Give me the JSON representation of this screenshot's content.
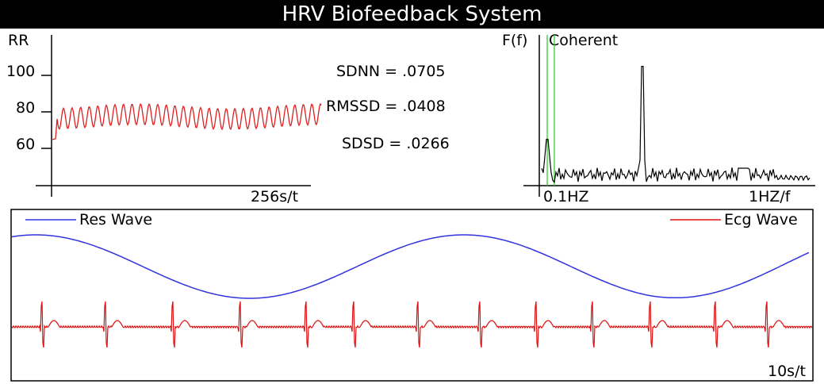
{
  "title": "HRV Biofeedback System",
  "rr_panel": {
    "y_label": "RR",
    "ticks": [
      "100",
      "80",
      "60"
    ],
    "x_label": "256s/t",
    "line_color": "#e02020"
  },
  "stats": {
    "sdnn": "SDNN = .0705",
    "rmssd": "RMSSD = .0408",
    "sdsd": "SDSD = .0266"
  },
  "spectrum_panel": {
    "y_label": "F(f)",
    "status": "Coherent",
    "x_label_low": "0.1HZ",
    "x_label_high": "1HZ/f",
    "marker_color": "#22cc22"
  },
  "wave_panel": {
    "res_label": "Res Wave",
    "ecg_label": "Ecg Wave",
    "x_label": "10s/t",
    "res_color": "#3333dd",
    "ecg_color": "#dd1111"
  }
}
